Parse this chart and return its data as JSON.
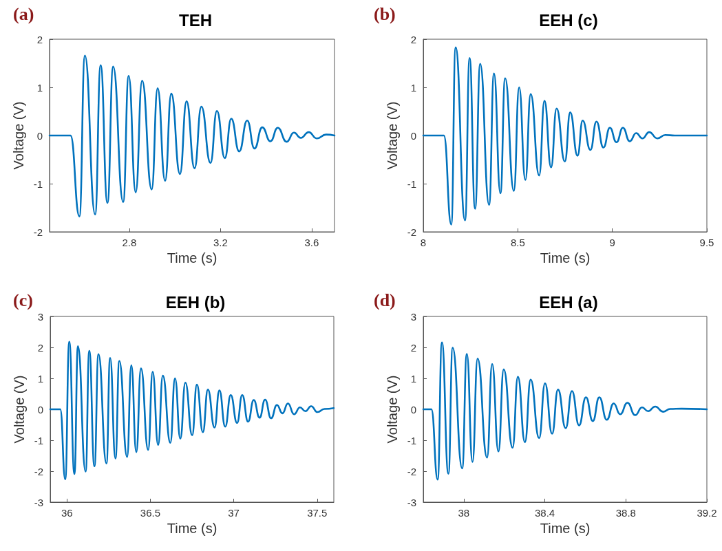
{
  "chart_data": [
    {
      "type": "line",
      "title": "TEH",
      "annotations": [
        "(a)"
      ],
      "xlabel": "Time (s)",
      "ylabel": "Voltage (V)",
      "xlim": [
        2.45,
        3.7
      ],
      "xticks": [
        2.8,
        3.2,
        3.6
      ],
      "ylim": [
        -2,
        2
      ],
      "yticks": [
        -2,
        -1,
        0,
        1,
        2
      ],
      "marker": "none",
      "line_style": "solid",
      "series": [
        {
          "color": "#0072bd",
          "x": [
            2.45,
            2.542,
            2.581,
            2.605,
            2.65,
            2.674,
            2.704,
            2.729,
            2.773,
            2.797,
            2.828,
            2.856,
            2.898,
            2.924,
            2.957,
            2.984,
            3.022,
            3.051,
            3.086,
            3.116,
            3.156,
            3.184,
            3.219,
            3.247,
            3.282,
            3.317,
            3.349,
            3.383,
            3.419,
            3.451,
            3.49,
            3.522,
            3.552,
            3.587,
            3.622,
            3.663,
            3.7
          ],
          "values": [
            0,
            0,
            -1.68,
            1.66,
            -1.64,
            1.46,
            -1.4,
            1.43,
            -1.38,
            1.24,
            -1.18,
            1.14,
            -1.12,
            0.98,
            -0.94,
            0.87,
            -0.8,
            0.71,
            -0.68,
            0.6,
            -0.57,
            0.51,
            -0.47,
            0.35,
            -0.33,
            0.31,
            -0.27,
            0.17,
            -0.12,
            0.16,
            -0.13,
            0.06,
            -0.05,
            0.07,
            -0.06,
            0.02,
            0
          ]
        }
      ]
    },
    {
      "type": "line",
      "title": "EEH (c)",
      "annotations": [
        "(b)"
      ],
      "xlabel": "Time (s)",
      "ylabel": "Voltage (V)",
      "xlim": [
        8,
        9.5
      ],
      "xticks": [
        8,
        8.5,
        9,
        9.5
      ],
      "ylim": [
        -2,
        2
      ],
      "yticks": [
        -2,
        -1,
        0,
        1,
        2
      ],
      "marker": "none",
      "line_style": "solid",
      "series": [
        {
          "color": "#0072bd",
          "x": [
            8,
            8.109,
            8.148,
            8.171,
            8.221,
            8.245,
            8.274,
            8.301,
            8.348,
            8.374,
            8.408,
            8.433,
            8.479,
            8.507,
            8.54,
            8.568,
            8.613,
            8.641,
            8.676,
            8.705,
            8.749,
            8.777,
            8.816,
            8.843,
            8.884,
            8.916,
            8.953,
            8.987,
            9.022,
            9.056,
            9.092,
            9.126,
            9.159,
            9.195,
            9.238,
            9.28,
            9.33,
            9.5
          ],
          "values": [
            0,
            0,
            -1.85,
            1.83,
            -1.76,
            1.61,
            -1.52,
            1.49,
            -1.44,
            1.29,
            -1.2,
            1.19,
            -1.15,
            1.0,
            -0.92,
            0.86,
            -0.83,
            0.72,
            -0.66,
            0.56,
            -0.54,
            0.48,
            -0.42,
            0.31,
            -0.3,
            0.29,
            -0.25,
            0.16,
            -0.14,
            0.16,
            -0.12,
            0.05,
            -0.06,
            0.07,
            -0.06,
            0.01,
            0,
            0
          ]
        }
      ]
    },
    {
      "type": "line",
      "title": "EEH (b)",
      "annotations": [
        "(c)"
      ],
      "xlabel": "Time (s)",
      "ylabel": "Voltage (V)",
      "xlim": [
        35.9,
        37.6
      ],
      "xticks": [
        36,
        36.5,
        37,
        37.5
      ],
      "ylim": [
        -3,
        3
      ],
      "yticks": [
        -3,
        -2,
        -1,
        0,
        1,
        2,
        3
      ],
      "marker": "none",
      "line_style": "solid",
      "series": [
        {
          "color": "#0072bd",
          "x": [
            35.9,
            35.96,
            35.99,
            36.014,
            36.045,
            36.066,
            36.112,
            36.134,
            36.165,
            36.189,
            36.237,
            36.259,
            36.291,
            36.314,
            36.361,
            36.386,
            36.416,
            36.444,
            36.487,
            36.514,
            36.547,
            36.575,
            36.62,
            36.648,
            36.68,
            36.71,
            36.751,
            36.779,
            36.815,
            36.845,
            36.885,
            36.914,
            36.949,
            36.982,
            37.02,
            37.051,
            37.086,
            37.12,
            37.155,
            37.188,
            37.224,
            37.259,
            37.292,
            37.325,
            37.362,
            37.397,
            37.43,
            37.464,
            37.502,
            37.544,
            37.6
          ],
          "values": [
            0,
            0,
            -2.26,
            2.18,
            -2.09,
            2.04,
            -2.01,
            1.89,
            -1.84,
            1.78,
            -1.75,
            1.66,
            -1.59,
            1.56,
            -1.54,
            1.42,
            -1.38,
            1.32,
            -1.31,
            1.21,
            -1.15,
            1.09,
            -1.08,
            1.0,
            -0.95,
            0.86,
            -0.84,
            0.8,
            -0.74,
            0.64,
            -0.59,
            0.61,
            -0.56,
            0.46,
            -0.44,
            0.46,
            -0.4,
            0.3,
            -0.27,
            0.31,
            -0.29,
            0.14,
            -0.13,
            0.19,
            -0.16,
            0.06,
            -0.06,
            0.1,
            -0.09,
            0.01,
            0.04
          ]
        }
      ]
    },
    {
      "type": "line",
      "title": "EEH (a)",
      "annotations": [
        "(d)"
      ],
      "xlabel": "Time (s)",
      "ylabel": "Voltage (V)",
      "xlim": [
        37.8,
        39.2
      ],
      "xticks": [
        38,
        38.4,
        38.8,
        39.2
      ],
      "ylim": [
        -3,
        3
      ],
      "yticks": [
        -3,
        -2,
        -1,
        0,
        1,
        2,
        3
      ],
      "marker": "none",
      "line_style": "solid",
      "series": [
        {
          "color": "#0072bd",
          "x": [
            37.8,
            37.84,
            37.871,
            37.892,
            37.924,
            37.945,
            37.992,
            38.015,
            38.043,
            38.068,
            38.115,
            38.14,
            38.171,
            38.197,
            38.241,
            38.267,
            38.302,
            38.33,
            38.372,
            38.401,
            38.436,
            38.465,
            38.503,
            38.534,
            38.569,
            38.603,
            38.637,
            38.669,
            38.706,
            38.74,
            38.772,
            38.808,
            38.846,
            38.88,
            38.91,
            38.945,
            38.984,
            39.019,
            39.075,
            39.2
          ],
          "values": [
            0,
            0,
            -2.27,
            2.16,
            -2.08,
            1.99,
            -1.91,
            1.79,
            -1.7,
            1.64,
            -1.56,
            1.46,
            -1.36,
            1.29,
            -1.24,
            1.05,
            -1.06,
            0.96,
            -0.93,
            0.84,
            -0.79,
            0.64,
            -0.61,
            0.59,
            -0.52,
            0.39,
            -0.38,
            0.39,
            -0.34,
            0.19,
            -0.16,
            0.21,
            -0.19,
            0.06,
            -0.06,
            0.09,
            -0.08,
            0.01,
            0.02,
            0
          ]
        }
      ]
    }
  ]
}
